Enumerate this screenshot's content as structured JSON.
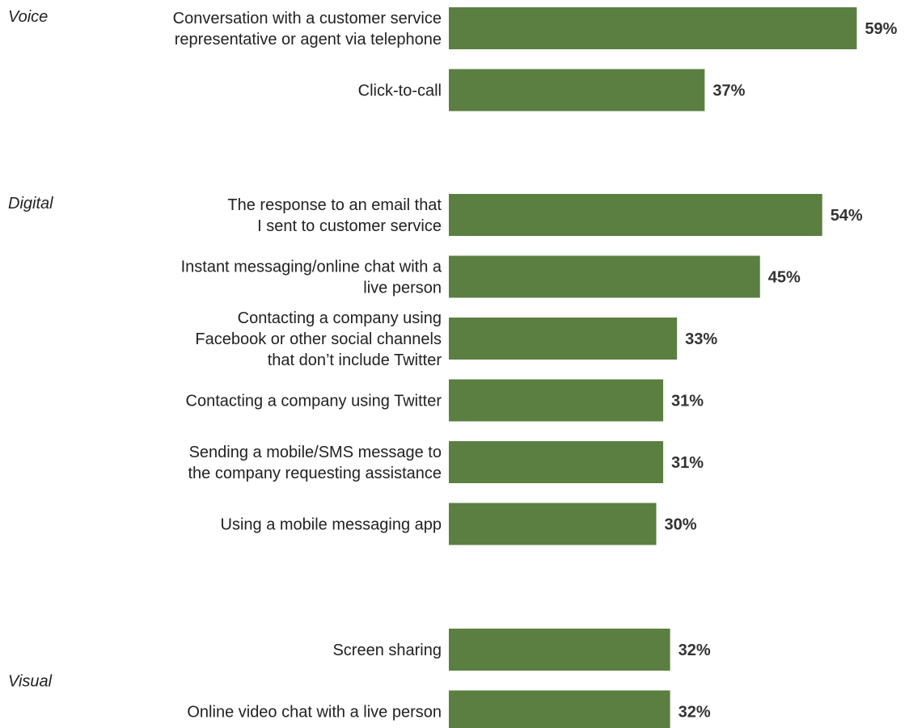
{
  "chart_data": {
    "type": "bar",
    "orientation": "horizontal",
    "bar_color": "#5b7f41",
    "value_suffix": "%",
    "groups": [
      {
        "name": "Voice",
        "categories": [
          [
            "Conversation with a customer service",
            "representative or agent via telephone"
          ],
          [
            "Click-to-call"
          ]
        ],
        "values": [
          59,
          37
        ]
      },
      {
        "name": "Digital",
        "categories": [
          [
            "The response to an email that",
            "I sent to customer service"
          ],
          [
            "Instant messaging/online chat with a",
            "live person"
          ],
          [
            "Contacting a company using",
            "Facebook or other social channels",
            "that don’t include Twitter"
          ],
          [
            "Contacting a company using Twitter"
          ],
          [
            "Sending a mobile/SMS message to",
            "the company requesting assistance"
          ],
          [
            "Using a mobile messaging app"
          ]
        ],
        "values": [
          54,
          45,
          33,
          31,
          31,
          30
        ]
      },
      {
        "name": "Visual",
        "categories": [
          [
            "Screen sharing"
          ],
          [
            "Online video chat with a live person"
          ]
        ],
        "values": [
          32,
          32
        ]
      }
    ]
  }
}
